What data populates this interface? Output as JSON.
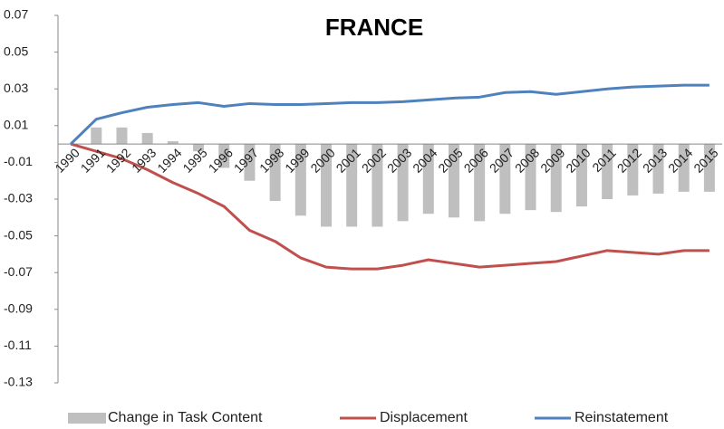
{
  "chart_data": {
    "type": "bar",
    "title": "FRANCE",
    "categories": [
      "1990",
      "1991",
      "1992",
      "1993",
      "1994",
      "1995",
      "1996",
      "1997",
      "1998",
      "1999",
      "2000",
      "2001",
      "2002",
      "2003",
      "2004",
      "2005",
      "2006",
      "2007",
      "2008",
      "2009",
      "2010",
      "2011",
      "2012",
      "2013",
      "2014",
      "2015"
    ],
    "series": [
      {
        "name": "Change in Task Content",
        "type": "bar",
        "color": "#bfbfbf",
        "values": [
          0,
          0.009,
          0.009,
          0.006,
          0.0015,
          -0.004,
          -0.013,
          -0.02,
          -0.031,
          -0.039,
          -0.045,
          -0.045,
          -0.045,
          -0.042,
          -0.038,
          -0.04,
          -0.042,
          -0.038,
          -0.036,
          -0.037,
          -0.034,
          -0.03,
          -0.028,
          -0.027,
          -0.026,
          -0.026
        ]
      },
      {
        "name": "Displacement",
        "type": "line",
        "color": "#c0504d",
        "values": [
          0,
          -0.004,
          -0.008,
          -0.014,
          -0.021,
          -0.027,
          -0.034,
          -0.047,
          -0.053,
          -0.062,
          -0.067,
          -0.068,
          -0.068,
          -0.066,
          -0.063,
          -0.065,
          -0.067,
          -0.066,
          -0.065,
          -0.064,
          -0.061,
          -0.058,
          -0.059,
          -0.06,
          -0.058,
          -0.058
        ]
      },
      {
        "name": "Reinstatement",
        "type": "line",
        "color": "#4f81bd",
        "values": [
          0,
          0.0135,
          0.017,
          0.02,
          0.0215,
          0.0225,
          0.0205,
          0.022,
          0.0215,
          0.0215,
          0.022,
          0.0225,
          0.0225,
          0.023,
          0.024,
          0.025,
          0.0255,
          0.028,
          0.0285,
          0.027,
          0.0285,
          0.03,
          0.031,
          0.0315,
          0.032,
          0.032
        ]
      }
    ],
    "ylim": [
      -0.13,
      0.07
    ],
    "yticks": [
      0.07,
      0.05,
      0.03,
      0.01,
      -0.01,
      -0.03,
      -0.05,
      -0.07,
      -0.09,
      -0.11,
      -0.13
    ],
    "grid": false
  }
}
